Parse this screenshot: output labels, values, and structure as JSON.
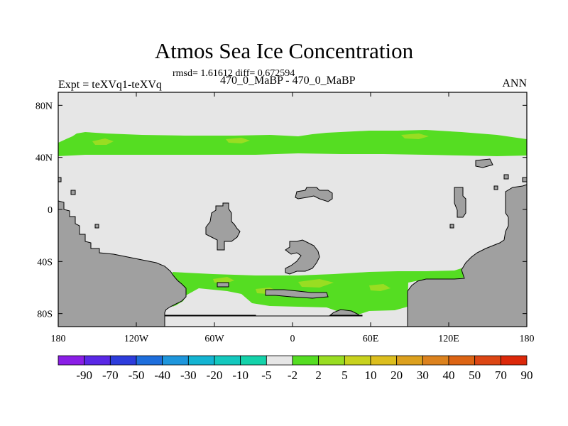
{
  "title": "Atmos Sea Ice Concentration",
  "stats": "rmsd= 1.61612 diff= 0.672594",
  "left_label": "Expt = teXVq1-teXVq",
  "center_label": "470_0_MaBP - 470_0_MaBP",
  "right_label": "ANN",
  "colors": {
    "background_field": "#e6e6e6",
    "land": "#a0a0a0",
    "positive_small": "#55dd22",
    "positive_medium": "#99dd22"
  },
  "chart_data": {
    "type": "heatmap",
    "projection": "cylindrical-equidistant",
    "xlim": [
      -180,
      180
    ],
    "ylim": [
      -90,
      90
    ],
    "x_ticks": [
      {
        "value": -180,
        "label": "180"
      },
      {
        "value": -120,
        "label": "120W"
      },
      {
        "value": -60,
        "label": "60W"
      },
      {
        "value": 0,
        "label": "0"
      },
      {
        "value": 60,
        "label": "60E"
      },
      {
        "value": 120,
        "label": "120E"
      },
      {
        "value": 180,
        "label": "180"
      }
    ],
    "y_ticks": [
      {
        "value": 80,
        "label": "80N"
      },
      {
        "value": 40,
        "label": "40N"
      },
      {
        "value": 0,
        "label": "0"
      },
      {
        "value": -40,
        "label": "40S"
      },
      {
        "value": -80,
        "label": "80S"
      }
    ],
    "colorbar": {
      "colors": [
        "#8a1ee6",
        "#5a28e6",
        "#2d3cdc",
        "#1e6edc",
        "#1e96dc",
        "#14b4d2",
        "#14c8be",
        "#14d2aa",
        "#e6e6e6",
        "#55dd22",
        "#99dd22",
        "#c8d21e",
        "#dcbe1e",
        "#dca01e",
        "#dc821e",
        "#dc6414",
        "#dc4614",
        "#dc280a"
      ],
      "labels": [
        "-90",
        "-70",
        "-50",
        "-40",
        "-30",
        "-20",
        "-10",
        "-5",
        "-2",
        "2",
        "5",
        "10",
        "20",
        "30",
        "40",
        "50",
        "70",
        "90"
      ]
    },
    "regions": [
      {
        "name": "northern-mid-latitude-band",
        "level": "2 to 5",
        "lon": [
          -180,
          180
        ],
        "lat": [
          39,
          59
        ]
      },
      {
        "name": "southern-ocean-band",
        "level": "2 to 10",
        "lon": [
          -90,
          90
        ],
        "lat": [
          -55,
          -80
        ]
      }
    ]
  }
}
